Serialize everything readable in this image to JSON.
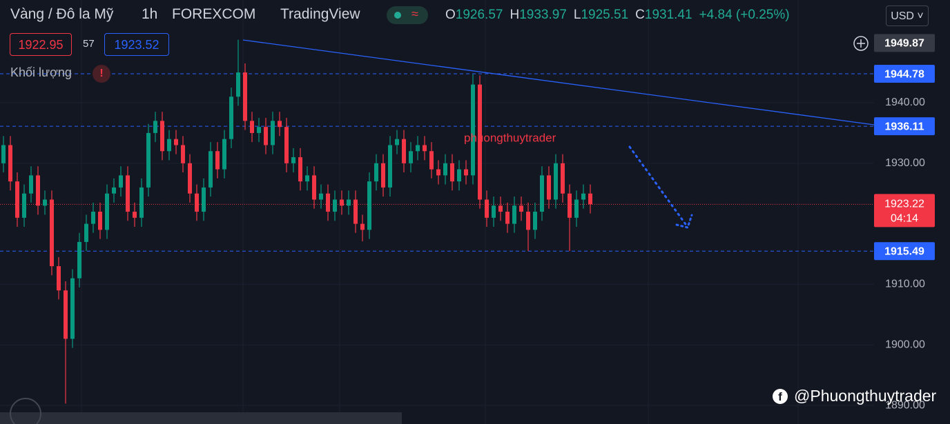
{
  "header": {
    "symbol": "Vàng / Đô la Mỹ",
    "interval": "1h",
    "exchange": "FOREXCOM",
    "source": "TradingView",
    "ohlc": [
      {
        "label": "O",
        "value": 1926.57
      },
      {
        "label": "H",
        "value": 1933.97
      },
      {
        "label": "L",
        "value": 1925.51
      },
      {
        "label": "C",
        "value": 1931.41
      }
    ],
    "change": "+4.84 (+0.25%)",
    "currency": "USD"
  },
  "bid_ask": {
    "sell": 1922.95,
    "spread": 57,
    "buy": 1923.52
  },
  "volume_label": "Khối lượng",
  "watermark": "phuongthuytrader",
  "footer": "@Phuongthuytrader",
  "chart_data": {
    "type": "candlestick",
    "open": [
      1930,
      1933,
      1927,
      1921,
      1925,
      1928,
      1923,
      1924,
      1913,
      1909,
      1901,
      1911,
      1917,
      1920,
      1922,
      1919,
      1925,
      1926,
      1928,
      1922,
      1921,
      1926,
      1935,
      1937,
      1932,
      1934,
      1933,
      1930,
      1925,
      1922,
      1926,
      1932,
      1929,
      1934,
      1941,
      1945,
      1937,
      1935,
      1936,
      1933,
      1937,
      1936,
      1930,
      1931,
      1927,
      1928,
      1924,
      1925,
      1922,
      1924,
      1923,
      1924,
      1920,
      1919,
      1927,
      1930,
      1926,
      1933,
      1934,
      1930,
      1932,
      1933,
      1932,
      1929,
      1928,
      1930,
      1927,
      1929,
      1928,
      1943,
      1924,
      1921,
      1923,
      1922,
      1920,
      1923,
      1922,
      1919,
      1922,
      1928,
      1924,
      1930,
      1925,
      1921,
      1924,
      1925
    ],
    "high": [
      1934.5,
      1934.5,
      1928.5,
      1926.5,
      1929.5,
      1929.5,
      1925.5,
      1925.5,
      1914.5,
      1910.5,
      1912.5,
      1918.5,
      1921.5,
      1923.5,
      1923.5,
      1926.5,
      1927.5,
      1929.5,
      1929.5,
      1923.5,
      1927.5,
      1936.5,
      1938.5,
      1938.5,
      1935.5,
      1935.5,
      1934.5,
      1931.5,
      1926.5,
      1927.5,
      1933.5,
      1933.5,
      1935.5,
      1942.5,
      1950.4,
      1946.5,
      1938.5,
      1937.5,
      1937.5,
      1938.5,
      1938.5,
      1937.5,
      1932.5,
      1932.5,
      1929.5,
      1929.5,
      1926.5,
      1926.5,
      1925.5,
      1925.5,
      1925.5,
      1925.5,
      1921.5,
      1928.5,
      1931.5,
      1931.5,
      1934.5,
      1935.5,
      1935.5,
      1933.5,
      1934.5,
      1934.5,
      1933.5,
      1930.5,
      1931.5,
      1931.5,
      1930.5,
      1930.5,
      1944.7,
      1944.5,
      1925.5,
      1924.5,
      1924.5,
      1923.5,
      1924.5,
      1924.5,
      1923.5,
      1923.5,
      1929.5,
      1929.5,
      1931.5,
      1931.5,
      1926.5,
      1925.5,
      1926.5,
      1926.5
    ],
    "low": [
      1928.5,
      1925.5,
      1919.5,
      1919.5,
      1923.5,
      1921.5,
      1921.5,
      1911.5,
      1907.5,
      1890.3,
      1899.5,
      1909.5,
      1915.5,
      1918.5,
      1917.5,
      1917.5,
      1923.5,
      1924.5,
      1920.5,
      1919.5,
      1919.5,
      1924.5,
      1933.5,
      1930.5,
      1930.5,
      1931.5,
      1928.5,
      1923.5,
      1920.5,
      1920.5,
      1924.5,
      1927.5,
      1927.5,
      1932.5,
      1939.5,
      1935.5,
      1933.5,
      1933.5,
      1931.5,
      1931.5,
      1934.5,
      1928.5,
      1928.5,
      1925.5,
      1925.5,
      1922.5,
      1922.5,
      1920.5,
      1920.5,
      1921.5,
      1921.5,
      1918.5,
      1917.1,
      1917.5,
      1925.5,
      1924.5,
      1924.5,
      1931.5,
      1928.5,
      1928.5,
      1930.5,
      1930.5,
      1927.5,
      1926.5,
      1926.5,
      1925.5,
      1925.5,
      1926.5,
      1926.5,
      1922.5,
      1919.5,
      1919.5,
      1920.5,
      1918.5,
      1918.5,
      1920.5,
      1915.5,
      1917.5,
      1920.5,
      1922.5,
      1922.5,
      1923.5,
      1915.5,
      1919.5,
      1922.5,
      1921.7
    ],
    "close": [
      1933,
      1927,
      1921,
      1925,
      1928,
      1923,
      1924,
      1913,
      1909,
      1901,
      1911,
      1917,
      1920,
      1922,
      1919,
      1925,
      1926,
      1928,
      1922,
      1921,
      1926,
      1935,
      1937,
      1932,
      1934,
      1933,
      1930,
      1925,
      1922,
      1926,
      1932,
      1929,
      1934,
      1941,
      1945,
      1937,
      1935,
      1936,
      1933,
      1937,
      1936,
      1930,
      1931,
      1927,
      1928,
      1924,
      1925,
      1922,
      1924,
      1923,
      1924,
      1920,
      1919,
      1927,
      1930,
      1926,
      1933,
      1934,
      1930,
      1932,
      1933,
      1932,
      1929,
      1928,
      1930,
      1927,
      1929,
      1928,
      1943,
      1924,
      1921,
      1923,
      1922,
      1920,
      1923,
      1922,
      1919,
      1922,
      1928,
      1924,
      1930,
      1925,
      1921,
      1924,
      1925,
      1923.22
    ],
    "up_color": "#089981",
    "down_color": "#f23645",
    "ylim": [
      1886.93,
      1956.97
    ],
    "yticks": [
      {
        "value": 1890,
        "label": "1890.00"
      },
      {
        "value": 1900,
        "label": "1900.00"
      },
      {
        "value": 1910,
        "label": "1910.00"
      },
      {
        "value": 1930,
        "label": "1930.00"
      },
      {
        "value": 1940,
        "label": "1940.00"
      }
    ],
    "grid": true,
    "price_lines": [
      1944.78,
      1936.11,
      1915.49
    ],
    "price_line_color": "#2962ff",
    "crosshair_price": 1949.87,
    "last_price": {
      "value": 1923.22,
      "countdown": "04:14"
    }
  }
}
